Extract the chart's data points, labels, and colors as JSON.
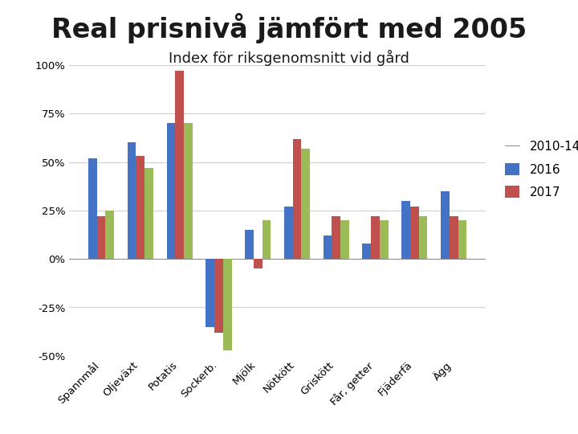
{
  "title": "Real prisnivå jämfört med 2005",
  "subtitle": "Index för riksgenomsnitt vid gård",
  "categories": [
    "Spannmål",
    "Oljeväxt",
    "Potatis",
    "Sockerb.",
    "Mjölk",
    "Nötkött",
    "Griskött",
    "Får, getter",
    "Fjäderfä",
    "Ägg"
  ],
  "series": {
    "2010-14": [
      52,
      60,
      70,
      -35,
      15,
      27,
      12,
      8,
      30,
      35
    ],
    "2016": [
      22,
      53,
      97,
      -38,
      -5,
      62,
      22,
      22,
      27,
      22
    ],
    "2017": [
      25,
      47,
      70,
      -47,
      20,
      57,
      20,
      20,
      22,
      20
    ]
  },
  "colors": {
    "2010-14": "#4472C4",
    "2016": "#C0504D",
    "2017": "#9BBB59"
  },
  "ylim": [
    -50,
    100
  ],
  "yticks": [
    -50,
    -25,
    0,
    25,
    50,
    75,
    100
  ],
  "ytick_labels": [
    "-50%",
    "-25%",
    "0%",
    "25%",
    "50%",
    "75%",
    "100%"
  ],
  "legend_labels": [
    "2010-14",
    "2016",
    "2017"
  ],
  "background_color": "#FFFFFF",
  "title_fontsize": 24,
  "subtitle_fontsize": 13,
  "bar_width": 0.22
}
